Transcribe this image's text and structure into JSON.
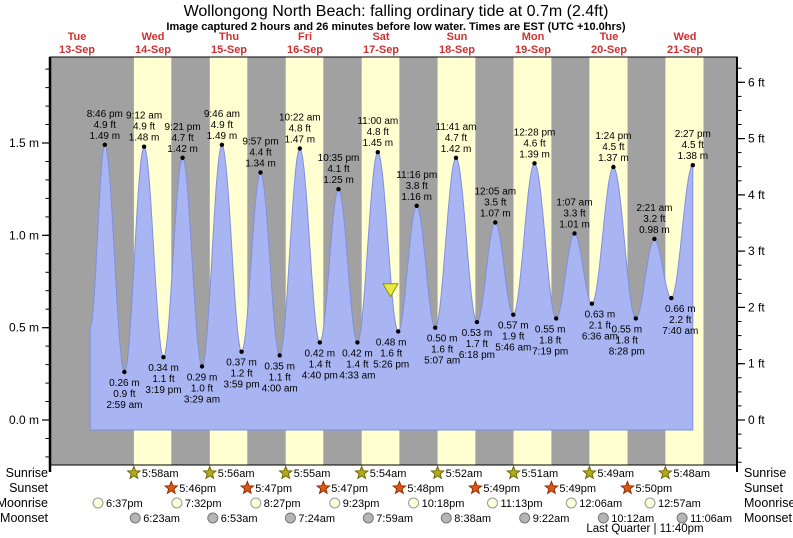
{
  "title": "Wollongong North Beach: falling  ordinary tide at 0.7m (2.4ft)",
  "subtitle": "Image captured 2 hours and 26 minutes before low water. Times are EST (UTC +10.0hrs)",
  "colors": {
    "day_label_red": "#cc3232",
    "night_band": "#a1a1a1",
    "daylight_band": "#ffffd2",
    "tide_fill": "#a9b4f2",
    "tide_stroke": "#7f90e0",
    "frame": "#000000",
    "current_marker_fill": "#e9e93f",
    "current_marker_stroke": "#8f8f10",
    "sunrise_star_fill": "#b3aa1f",
    "sunrise_star_stroke": "#6f6a00",
    "sunset_star_fill": "#d55a17",
    "sunset_star_stroke": "#992d00",
    "moonrise_fill": "#ffffdb",
    "moonrise_stroke": "#999999",
    "moonset_fill": "#b5b5b5",
    "moonset_stroke": "#777777"
  },
  "chart_data": {
    "type": "area",
    "title": "Wollongong North Beach: falling  ordinary tide at 0.7m (2.4ft)",
    "x_days": [
      {
        "name": "Tue",
        "date": "13-Sep"
      },
      {
        "name": "Wed",
        "date": "14-Sep"
      },
      {
        "name": "Thu",
        "date": "15-Sep"
      },
      {
        "name": "Fri",
        "date": "16-Sep"
      },
      {
        "name": "Sat",
        "date": "17-Sep"
      },
      {
        "name": "Sun",
        "date": "18-Sep"
      },
      {
        "name": "Mon",
        "date": "19-Sep"
      },
      {
        "name": "Tue",
        "date": "20-Sep"
      },
      {
        "name": "Wed",
        "date": "21-Sep"
      }
    ],
    "y_left": {
      "unit": "m",
      "ticks": [
        {
          "v": 0,
          "label": "0.0 m"
        },
        {
          "v": 0.5,
          "label": "0.5 m"
        },
        {
          "v": 1,
          "label": "1.0 m"
        },
        {
          "v": 1.5,
          "label": "1.5 m"
        }
      ],
      "minor_step": 0.1,
      "minor_range": [
        -0.2,
        1.9
      ]
    },
    "y_right": {
      "unit": "ft",
      "ticks": [
        {
          "v": 0,
          "label": "0 ft"
        },
        {
          "v": 1,
          "label": "1 ft"
        },
        {
          "v": 2,
          "label": "2 ft"
        },
        {
          "v": 3,
          "label": "3 ft"
        },
        {
          "v": 4,
          "label": "4 ft"
        },
        {
          "v": 5,
          "label": "5 ft"
        },
        {
          "v": 6,
          "label": "6 ft"
        }
      ],
      "minor_step": 0.25,
      "minor_range": [
        -0.75,
        6.25
      ]
    },
    "series_start": {
      "day": 0,
      "time": "4:10 pm",
      "height_m": 0.5
    },
    "events": [
      {
        "kind": "high",
        "day": 0,
        "time": "8:46 pm",
        "ft": 4.9,
        "m": 1.49
      },
      {
        "kind": "low",
        "day": 1,
        "time": "2:59 am",
        "ft": 0.9,
        "m": 0.26
      },
      {
        "kind": "high",
        "day": 1,
        "time": "9:12 am",
        "ft": 4.9,
        "m": 1.48
      },
      {
        "kind": "low",
        "day": 1,
        "time": "3:19 pm",
        "ft": 1.1,
        "m": 0.34
      },
      {
        "kind": "high",
        "day": 1,
        "time": "9:21 pm",
        "ft": 4.7,
        "m": 1.42
      },
      {
        "kind": "low",
        "day": 2,
        "time": "3:29 am",
        "ft": 1.0,
        "m": 0.29
      },
      {
        "kind": "high",
        "day": 2,
        "time": "9:46 am",
        "ft": 4.9,
        "m": 1.49
      },
      {
        "kind": "low",
        "day": 2,
        "time": "3:59 pm",
        "ft": 1.2,
        "m": 0.37
      },
      {
        "kind": "high",
        "day": 2,
        "time": "9:57 pm",
        "ft": 4.4,
        "m": 1.34
      },
      {
        "kind": "low",
        "day": 3,
        "time": "4:00 am",
        "ft": 1.1,
        "m": 0.35
      },
      {
        "kind": "high",
        "day": 3,
        "time": "10:22 am",
        "ft": 4.8,
        "m": 1.47
      },
      {
        "kind": "low",
        "day": 3,
        "time": "4:40 pm",
        "ft": 1.4,
        "m": 0.42
      },
      {
        "kind": "high",
        "day": 3,
        "time": "10:35 pm",
        "ft": 4.1,
        "m": 1.25
      },
      {
        "kind": "low",
        "day": 4,
        "time": "4:33 am",
        "ft": 1.4,
        "m": 0.42
      },
      {
        "kind": "high",
        "day": 4,
        "time": "11:00 am",
        "ft": 4.8,
        "m": 1.45
      },
      {
        "kind": "low",
        "day": 4,
        "time": "5:26 pm",
        "ft": 1.6,
        "m": 0.48
      },
      {
        "kind": "high",
        "day": 4,
        "time": "11:16 pm",
        "ft": 3.8,
        "m": 1.16
      },
      {
        "kind": "low",
        "day": 5,
        "time": "5:07 am",
        "ft": 1.6,
        "m": 0.5
      },
      {
        "kind": "high",
        "day": 5,
        "time": "11:41 am",
        "ft": 4.7,
        "m": 1.42
      },
      {
        "kind": "low",
        "day": 5,
        "time": "6:18 pm",
        "ft": 1.7,
        "m": 0.53
      },
      {
        "kind": "high",
        "day": 6,
        "time": "12:05 am",
        "ft": 3.5,
        "m": 1.07
      },
      {
        "kind": "low",
        "day": 6,
        "time": "5:46 am",
        "ft": 1.9,
        "m": 0.57
      },
      {
        "kind": "high",
        "day": 6,
        "time": "12:28 pm",
        "ft": 4.6,
        "m": 1.39
      },
      {
        "kind": "low",
        "day": 6,
        "time": "7:19 pm",
        "ft": 1.8,
        "m": 0.55
      },
      {
        "kind": "high",
        "day": 7,
        "time": "1:07 am",
        "ft": 3.3,
        "m": 1.01
      },
      {
        "kind": "low",
        "day": 7,
        "time": "6:36 am",
        "ft": 2.1,
        "m": 0.63
      },
      {
        "kind": "high",
        "day": 7,
        "time": "1:24 pm",
        "ft": 4.5,
        "m": 1.37
      },
      {
        "kind": "low",
        "day": 7,
        "time": "8:28 pm",
        "ft": 1.8,
        "m": 0.55
      },
      {
        "kind": "high",
        "day": 8,
        "time": "2:21 am",
        "ft": 3.2,
        "m": 0.98
      },
      {
        "kind": "low",
        "day": 8,
        "time": "7:40 am",
        "ft": 2.2,
        "m": 0.66
      },
      {
        "kind": "high",
        "day": 8,
        "time": "2:27 pm",
        "ft": 4.5,
        "m": 1.38
      }
    ],
    "daylight_bands": [
      {
        "day": 1,
        "start": "5:58 am",
        "end": "5:46 pm"
      },
      {
        "day": 2,
        "start": "5:56 am",
        "end": "5:47 pm"
      },
      {
        "day": 3,
        "start": "5:55 am",
        "end": "5:47 pm"
      },
      {
        "day": 4,
        "start": "5:54 am",
        "end": "5:48 pm"
      },
      {
        "day": 5,
        "start": "5:52 am",
        "end": "5:49 pm"
      },
      {
        "day": 6,
        "start": "5:51 am",
        "end": "5:49 pm"
      },
      {
        "day": 7,
        "start": "5:49 am",
        "end": "5:50 pm"
      },
      {
        "day": 8,
        "start": "5:48 am",
        "end": "5:50 pm"
      }
    ],
    "current_marker": {
      "day": 4,
      "time": "3:00 pm",
      "height_m": 0.7
    }
  },
  "almanac": {
    "rows": [
      {
        "label": "Sunrise",
        "icon": "sunrise-star-icon",
        "times": [
          {
            "day": 1,
            "time": "5:58am"
          },
          {
            "day": 2,
            "time": "5:56am"
          },
          {
            "day": 3,
            "time": "5:55am"
          },
          {
            "day": 4,
            "time": "5:54am"
          },
          {
            "day": 5,
            "time": "5:52am"
          },
          {
            "day": 6,
            "time": "5:51am"
          },
          {
            "day": 7,
            "time": "5:49am"
          },
          {
            "day": 8,
            "time": "5:48am"
          }
        ]
      },
      {
        "label": "Sunset",
        "icon": "sunset-star-icon",
        "times": [
          {
            "day": 1,
            "time": "5:46pm"
          },
          {
            "day": 2,
            "time": "5:47pm"
          },
          {
            "day": 3,
            "time": "5:47pm"
          },
          {
            "day": 4,
            "time": "5:48pm"
          },
          {
            "day": 5,
            "time": "5:49pm"
          },
          {
            "day": 6,
            "time": "5:49pm"
          },
          {
            "day": 7,
            "time": "5:50pm"
          }
        ]
      },
      {
        "label": "Moonrise",
        "icon": "moonrise-circle-icon",
        "times": [
          {
            "day": 0,
            "time": "6:37pm"
          },
          {
            "day": 1,
            "time": "7:32pm"
          },
          {
            "day": 2,
            "time": "8:27pm"
          },
          {
            "day": 3,
            "time": "9:23pm"
          },
          {
            "day": 4,
            "time": "10:18pm"
          },
          {
            "day": 5,
            "time": "11:13pm"
          },
          {
            "day": 7,
            "time": "12:06am"
          },
          {
            "day": 8,
            "time": "12:57am"
          }
        ]
      },
      {
        "label": "Moonset",
        "icon": "moonset-circle-icon",
        "times": [
          {
            "day": 1,
            "time": "6:23am"
          },
          {
            "day": 2,
            "time": "6:53am"
          },
          {
            "day": 3,
            "time": "7:24am"
          },
          {
            "day": 4,
            "time": "7:59am"
          },
          {
            "day": 5,
            "time": "8:38am"
          },
          {
            "day": 6,
            "time": "9:22am"
          },
          {
            "day": 7,
            "time": "10:12am"
          },
          {
            "day": 8,
            "time": "11:06am"
          }
        ]
      }
    ],
    "footnote": "Last Quarter | 11:40pm"
  }
}
